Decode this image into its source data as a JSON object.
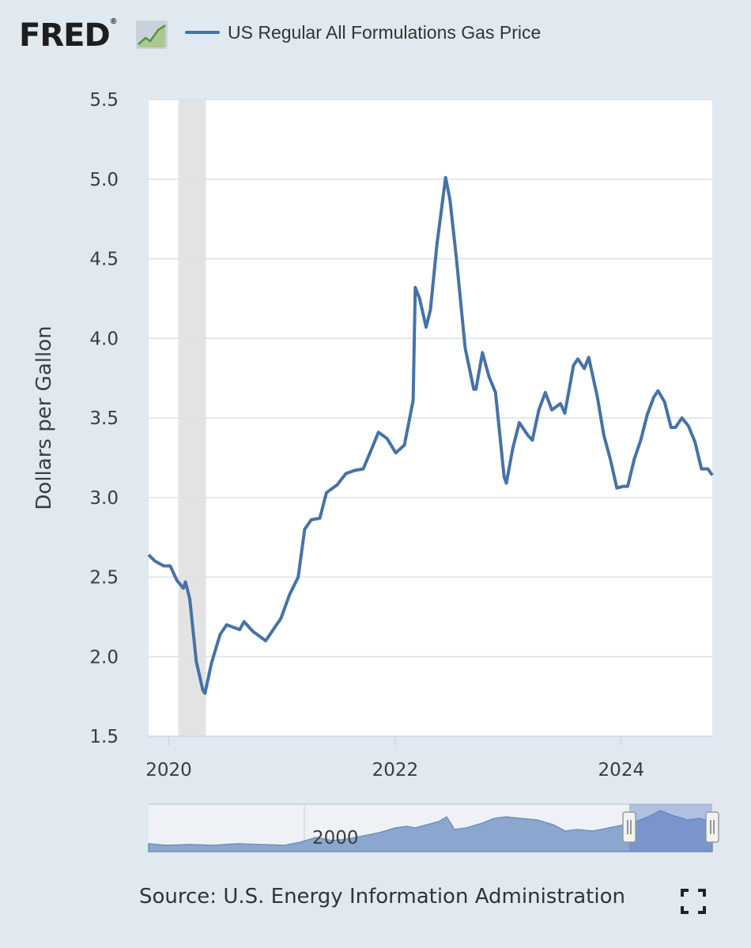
{
  "header": {
    "logo_text": "FRED",
    "logo_reg": "®",
    "logo_icon": "chart-trend-icon"
  },
  "legend": {
    "label": "US Regular All Formulations Gas Price",
    "color": "#4572a7"
  },
  "footer": {
    "source": "Source: U.S. Energy Information Administration",
    "fullscreen_icon": "fullscreen-icon"
  },
  "colors": {
    "line": "#4572a7",
    "recession": "#e3e3e3",
    "background": "#e1e9f0",
    "plot": "#ffffff",
    "navigator_fill": "#6b8fc2"
  },
  "chart_data": {
    "type": "line",
    "title": "",
    "xlabel": "",
    "ylabel": "Dollars per Gallon",
    "xlim": [
      "2019-10-28",
      "2024-10-21"
    ],
    "ylim": [
      1.5,
      5.5
    ],
    "yticks": [
      "1.5",
      "2.0",
      "2.5",
      "3.0",
      "3.5",
      "4.0",
      "4.5",
      "5.0",
      "5.5"
    ],
    "xticks": [
      {
        "label": "2020",
        "date": "2020-01-01"
      },
      {
        "label": "2022",
        "date": "2022-01-01"
      },
      {
        "label": "2024",
        "date": "2024-01-01"
      }
    ],
    "grid": true,
    "recession": {
      "start": "2020-02-01",
      "end": "2020-04-30"
    },
    "series": [
      {
        "name": "US Regular All Formulations Gas Price",
        "points": [
          [
            "2019-10-28",
            2.64
          ],
          [
            "2019-11-18",
            2.6
          ],
          [
            "2019-12-16",
            2.57
          ],
          [
            "2020-01-06",
            2.57
          ],
          [
            "2020-01-27",
            2.48
          ],
          [
            "2020-02-17",
            2.43
          ],
          [
            "2020-02-24",
            2.47
          ],
          [
            "2020-03-09",
            2.36
          ],
          [
            "2020-03-30",
            1.97
          ],
          [
            "2020-04-20",
            1.79
          ],
          [
            "2020-04-27",
            1.77
          ],
          [
            "2020-05-18",
            1.96
          ],
          [
            "2020-06-15",
            2.14
          ],
          [
            "2020-07-06",
            2.2
          ],
          [
            "2020-08-17",
            2.17
          ],
          [
            "2020-08-31",
            2.22
          ],
          [
            "2020-09-28",
            2.16
          ],
          [
            "2020-11-09",
            2.1
          ],
          [
            "2020-11-30",
            2.16
          ],
          [
            "2020-12-28",
            2.24
          ],
          [
            "2021-01-25",
            2.39
          ],
          [
            "2021-02-22",
            2.5
          ],
          [
            "2021-03-15",
            2.8
          ],
          [
            "2021-04-05",
            2.86
          ],
          [
            "2021-05-03",
            2.87
          ],
          [
            "2021-05-24",
            3.03
          ],
          [
            "2021-06-28",
            3.08
          ],
          [
            "2021-07-26",
            3.15
          ],
          [
            "2021-08-23",
            3.17
          ],
          [
            "2021-09-20",
            3.18
          ],
          [
            "2021-10-18",
            3.31
          ],
          [
            "2021-11-08",
            3.41
          ],
          [
            "2021-12-06",
            3.37
          ],
          [
            "2022-01-03",
            3.28
          ],
          [
            "2022-01-31",
            3.33
          ],
          [
            "2022-02-28",
            3.61
          ],
          [
            "2022-03-07",
            4.32
          ],
          [
            "2022-03-21",
            4.25
          ],
          [
            "2022-04-11",
            4.07
          ],
          [
            "2022-04-25",
            4.18
          ],
          [
            "2022-05-16",
            4.59
          ],
          [
            "2022-06-13",
            5.01
          ],
          [
            "2022-06-27",
            4.87
          ],
          [
            "2022-07-18",
            4.5
          ],
          [
            "2022-08-15",
            3.94
          ],
          [
            "2022-09-12",
            3.68
          ],
          [
            "2022-09-19",
            3.68
          ],
          [
            "2022-10-10",
            3.91
          ],
          [
            "2022-10-31",
            3.76
          ],
          [
            "2022-11-21",
            3.66
          ],
          [
            "2022-12-19",
            3.13
          ],
          [
            "2022-12-26",
            3.09
          ],
          [
            "2023-01-16",
            3.31
          ],
          [
            "2023-02-06",
            3.47
          ],
          [
            "2023-03-06",
            3.39
          ],
          [
            "2023-03-20",
            3.36
          ],
          [
            "2023-04-10",
            3.55
          ],
          [
            "2023-05-01",
            3.66
          ],
          [
            "2023-05-22",
            3.55
          ],
          [
            "2023-06-19",
            3.59
          ],
          [
            "2023-07-03",
            3.53
          ],
          [
            "2023-07-31",
            3.83
          ],
          [
            "2023-08-14",
            3.87
          ],
          [
            "2023-09-04",
            3.81
          ],
          [
            "2023-09-18",
            3.88
          ],
          [
            "2023-10-16",
            3.63
          ],
          [
            "2023-11-06",
            3.39
          ],
          [
            "2023-11-27",
            3.24
          ],
          [
            "2023-12-18",
            3.06
          ],
          [
            "2024-01-08",
            3.07
          ],
          [
            "2024-01-22",
            3.07
          ],
          [
            "2024-02-12",
            3.24
          ],
          [
            "2024-03-04",
            3.36
          ],
          [
            "2024-03-25",
            3.52
          ],
          [
            "2024-04-15",
            3.63
          ],
          [
            "2024-04-29",
            3.67
          ],
          [
            "2024-05-20",
            3.6
          ],
          [
            "2024-06-10",
            3.44
          ],
          [
            "2024-06-24",
            3.44
          ],
          [
            "2024-07-15",
            3.5
          ],
          [
            "2024-08-05",
            3.45
          ],
          [
            "2024-08-26",
            3.35
          ],
          [
            "2024-09-16",
            3.18
          ],
          [
            "2024-10-07",
            3.18
          ],
          [
            "2024-10-21",
            3.14
          ]
        ]
      }
    ],
    "navigator": {
      "xlabel": "2000",
      "selected_range": [
        "2019-10-28",
        "2024-10-21"
      ]
    }
  }
}
